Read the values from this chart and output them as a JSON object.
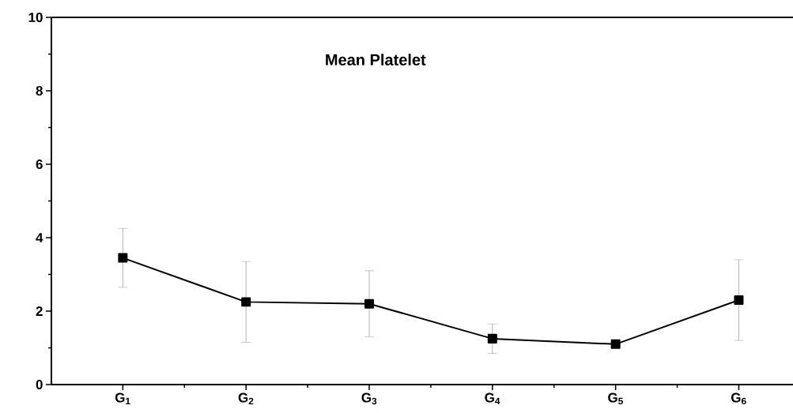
{
  "chart_data": {
    "type": "line",
    "title": "**Mean Platelet**",
    "categories": [
      "G$_{1}$",
      "G$_{2}$",
      "G$_{3}$",
      "G$_{4}$",
      "G$_{5}$",
      "G$_{6}$"
    ],
    "values": [
      3.45,
      2.25,
      2.2,
      1.25,
      1.1,
      2.3
    ],
    "errors": [
      0.8,
      1.1,
      0.9,
      0.4,
      null,
      1.1
    ],
    "color": "#000000",
    "marker": "square",
    "line_style": "solid",
    "grid": false,
    "ylim": [
      0,
      10
    ],
    "yticks": [
      0,
      2,
      4,
      6,
      8,
      10
    ]
  }
}
